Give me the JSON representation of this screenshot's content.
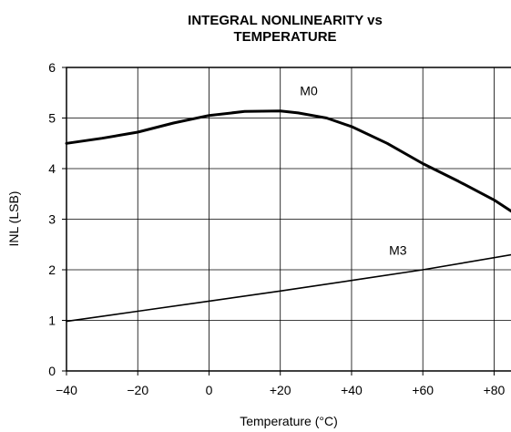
{
  "chart_data": {
    "type": "line",
    "title": "INTEGRAL NONLINEARITY vs",
    "subtitle": "TEMPERATURE",
    "xlabel": "Temperature (°C)",
    "ylabel": "INL (LSB)",
    "xlim": [
      -40,
      85
    ],
    "ylim": [
      0,
      6
    ],
    "xticks": [
      -40,
      -20,
      0,
      20,
      40,
      60,
      80
    ],
    "xtick_labels": [
      "−40",
      "−20",
      "0",
      "+20",
      "+40",
      "+60",
      "+80"
    ],
    "yticks": [
      0,
      1,
      2,
      3,
      4,
      5,
      6
    ],
    "ytick_labels": [
      "0",
      "1",
      "2",
      "3",
      "4",
      "5",
      "6"
    ],
    "grid": true,
    "series": [
      {
        "name": "M0",
        "x": [
          -40,
          -30,
          -20,
          -10,
          0,
          10,
          20,
          25,
          33,
          40,
          50,
          60,
          70,
          80,
          85
        ],
        "y": [
          4.5,
          4.6,
          4.72,
          4.9,
          5.05,
          5.13,
          5.14,
          5.1,
          5.0,
          4.83,
          4.5,
          4.1,
          3.75,
          3.38,
          3.15
        ],
        "color": "#000000"
      },
      {
        "name": "M3",
        "x": [
          -40,
          -20,
          0,
          20,
          40,
          60,
          85
        ],
        "y": [
          0.98,
          1.18,
          1.38,
          1.58,
          1.79,
          2.0,
          2.3
        ],
        "color": "#000000"
      }
    ]
  }
}
